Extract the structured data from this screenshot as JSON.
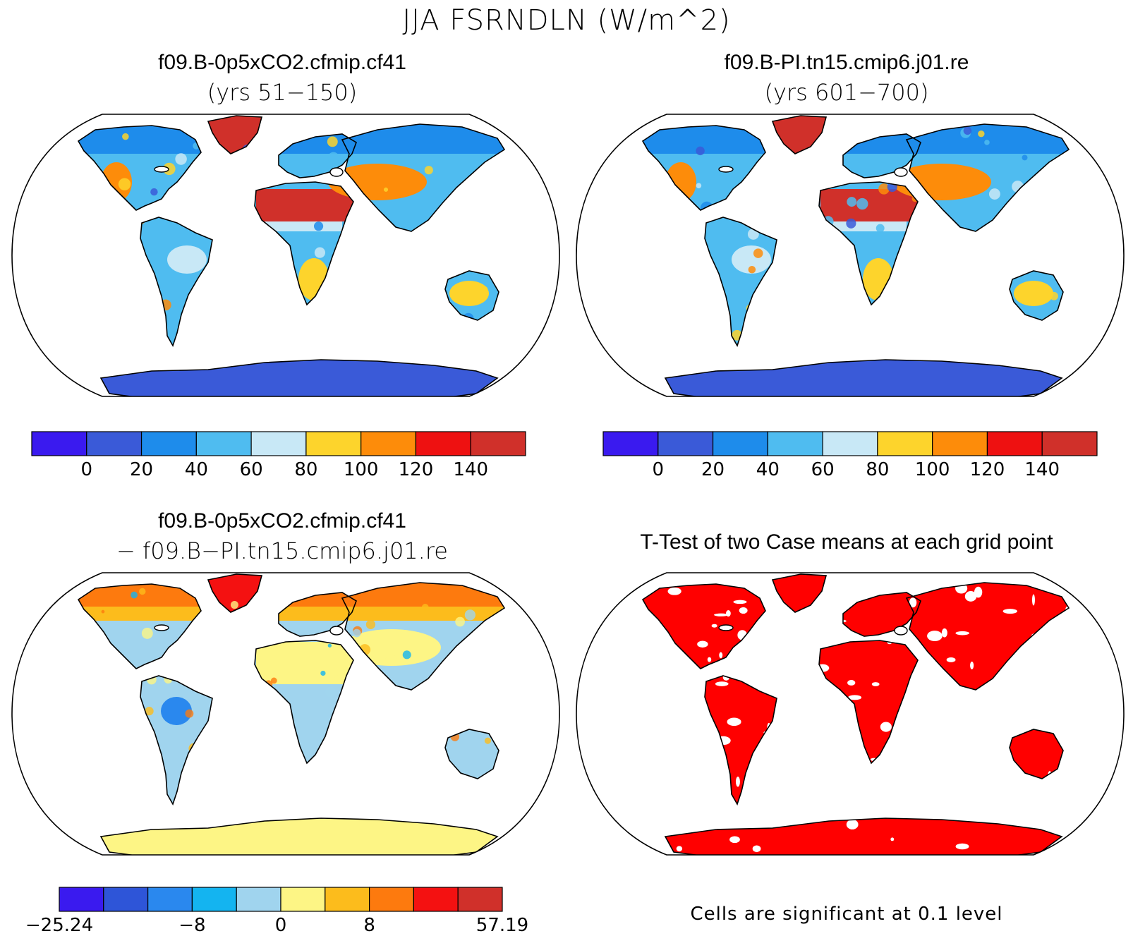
{
  "main_title": "JJA FSRNDLN (W/m^2)",
  "panels": [
    {
      "title": "f09.B-0p5xCO2.cfmip.cf41",
      "subtitle": "(yrs 51−150)",
      "kind": "field"
    },
    {
      "title": "f09.B-PI.tn15.cmip6.j01.re",
      "subtitle": "(yrs 601−700)",
      "kind": "field"
    },
    {
      "title": "f09.B-0p5xCO2.cfmip.cf41",
      "subtitle": "− f09.B−PI.tn15.cmip6.j01.re",
      "kind": "difference"
    },
    {
      "title": "T-Test of two Case means at each grid point",
      "subtitle": "",
      "kind": "ttest",
      "note": "Cells are significant at 0.1 level"
    }
  ],
  "colorbars": {
    "field": {
      "colors": [
        "#3a1aef",
        "#3a5ad8",
        "#1e8ceb",
        "#4fbcf0",
        "#c8e8f6",
        "#fdd42c",
        "#fd8c0a",
        "#ee1111",
        "#d0302a"
      ],
      "labels": [
        "0",
        "20",
        "40",
        "60",
        "80",
        "100",
        "120",
        "140"
      ]
    },
    "difference": {
      "colors": [
        "#3a1aef",
        "#2e55d8",
        "#2a88ee",
        "#14b4f0",
        "#a0d4ee",
        "#fdf585",
        "#fcbc1c",
        "#fd7a0e",
        "#f41111",
        "#d0302a"
      ],
      "labels": [
        "−25.24",
        "−8",
        "0",
        "8",
        "57.19"
      ],
      "label_positions": [
        0,
        3,
        5,
        7,
        10
      ]
    }
  },
  "map_palette": {
    "ocean": "#ffffff",
    "antarctic_field": "#3a5ad8",
    "antarctic_diff": "#fdf585",
    "significant": "#ff0000",
    "coast": "#000000"
  }
}
